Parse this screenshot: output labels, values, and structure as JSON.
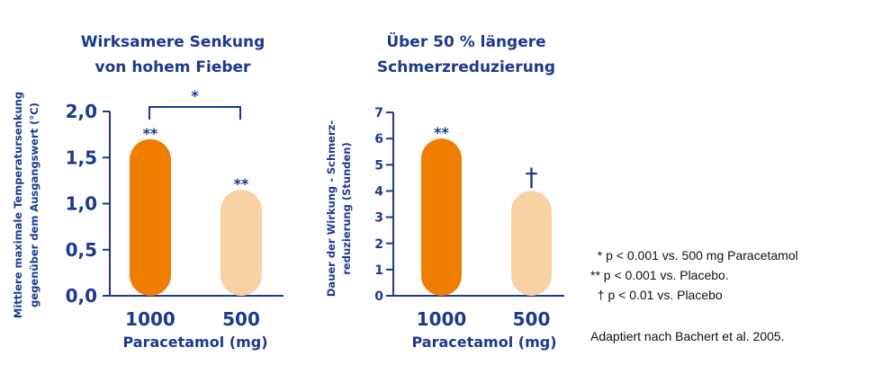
{
  "colors": {
    "text": "#1b3990",
    "bar_primary": "#ef7d00",
    "bar_secondary": "#f9d2a3"
  },
  "chart_data": [
    {
      "type": "bar",
      "title_lines": [
        "Wirksamere Senkung",
        "von hohem Fieber"
      ],
      "ylabel_lines": [
        "Mittlere maximale Temperatursenkung",
        "gegenüber dem Ausgangswert (°C)"
      ],
      "xlabel": "Paracetamol (mg)",
      "categories": [
        "1000",
        "500"
      ],
      "values": [
        1.7,
        1.15
      ],
      "annotations": [
        "**",
        "**"
      ],
      "bracket_label": "*",
      "ylim": [
        0,
        2
      ],
      "yticks": [
        "0,0",
        "0,5",
        "1,0",
        "1,5",
        "2,0"
      ],
      "grid": false
    },
    {
      "type": "bar",
      "title_lines": [
        "Über 50 % längere",
        "Schmerzreduzierung"
      ],
      "ylabel_lines": [
        "Dauer der Wirkung - Schmerz-",
        "reduzierung (Stunden)"
      ],
      "xlabel": "Paracetamol (mg)",
      "categories": [
        "1000",
        "500"
      ],
      "values": [
        6,
        4
      ],
      "annotations": [
        "**",
        "†"
      ],
      "ylim": [
        0,
        7
      ],
      "yticks": [
        "0",
        "1",
        "2",
        "3",
        "4",
        "5",
        "6",
        "7"
      ],
      "grid": false
    }
  ],
  "legend": {
    "lines": [
      "  * p < 0.001 vs. 500 mg Paracetamol",
      "** p < 0.001 vs. Placebo.",
      "  † p < 0.01 vs. Placebo"
    ],
    "source": "Adaptiert nach Bachert et al. 2005."
  }
}
